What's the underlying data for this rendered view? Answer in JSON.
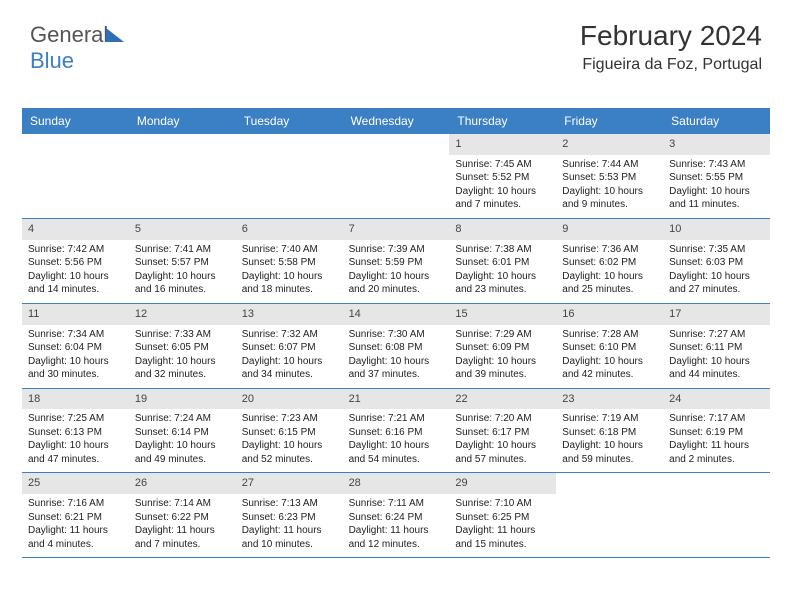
{
  "brand": {
    "part1": "General",
    "part2": "Blue"
  },
  "title": "February 2024",
  "location": "Figueira da Foz, Portugal",
  "colors": {
    "header_bg": "#3b7fc4",
    "header_text": "#ffffff",
    "daynum_bg": "#e6e6e6",
    "row_border": "#3b7fc4",
    "page_bg": "#ffffff",
    "text": "#333333"
  },
  "day_headers": [
    "Sunday",
    "Monday",
    "Tuesday",
    "Wednesday",
    "Thursday",
    "Friday",
    "Saturday"
  ],
  "weeks": [
    [
      {
        "empty": true
      },
      {
        "empty": true
      },
      {
        "empty": true
      },
      {
        "empty": true
      },
      {
        "num": "1",
        "sunrise": "Sunrise: 7:45 AM",
        "sunset": "Sunset: 5:52 PM",
        "daylight": "Daylight: 10 hours and 7 minutes."
      },
      {
        "num": "2",
        "sunrise": "Sunrise: 7:44 AM",
        "sunset": "Sunset: 5:53 PM",
        "daylight": "Daylight: 10 hours and 9 minutes."
      },
      {
        "num": "3",
        "sunrise": "Sunrise: 7:43 AM",
        "sunset": "Sunset: 5:55 PM",
        "daylight": "Daylight: 10 hours and 11 minutes."
      }
    ],
    [
      {
        "num": "4",
        "sunrise": "Sunrise: 7:42 AM",
        "sunset": "Sunset: 5:56 PM",
        "daylight": "Daylight: 10 hours and 14 minutes."
      },
      {
        "num": "5",
        "sunrise": "Sunrise: 7:41 AM",
        "sunset": "Sunset: 5:57 PM",
        "daylight": "Daylight: 10 hours and 16 minutes."
      },
      {
        "num": "6",
        "sunrise": "Sunrise: 7:40 AM",
        "sunset": "Sunset: 5:58 PM",
        "daylight": "Daylight: 10 hours and 18 minutes."
      },
      {
        "num": "7",
        "sunrise": "Sunrise: 7:39 AM",
        "sunset": "Sunset: 5:59 PM",
        "daylight": "Daylight: 10 hours and 20 minutes."
      },
      {
        "num": "8",
        "sunrise": "Sunrise: 7:38 AM",
        "sunset": "Sunset: 6:01 PM",
        "daylight": "Daylight: 10 hours and 23 minutes."
      },
      {
        "num": "9",
        "sunrise": "Sunrise: 7:36 AM",
        "sunset": "Sunset: 6:02 PM",
        "daylight": "Daylight: 10 hours and 25 minutes."
      },
      {
        "num": "10",
        "sunrise": "Sunrise: 7:35 AM",
        "sunset": "Sunset: 6:03 PM",
        "daylight": "Daylight: 10 hours and 27 minutes."
      }
    ],
    [
      {
        "num": "11",
        "sunrise": "Sunrise: 7:34 AM",
        "sunset": "Sunset: 6:04 PM",
        "daylight": "Daylight: 10 hours and 30 minutes."
      },
      {
        "num": "12",
        "sunrise": "Sunrise: 7:33 AM",
        "sunset": "Sunset: 6:05 PM",
        "daylight": "Daylight: 10 hours and 32 minutes."
      },
      {
        "num": "13",
        "sunrise": "Sunrise: 7:32 AM",
        "sunset": "Sunset: 6:07 PM",
        "daylight": "Daylight: 10 hours and 34 minutes."
      },
      {
        "num": "14",
        "sunrise": "Sunrise: 7:30 AM",
        "sunset": "Sunset: 6:08 PM",
        "daylight": "Daylight: 10 hours and 37 minutes."
      },
      {
        "num": "15",
        "sunrise": "Sunrise: 7:29 AM",
        "sunset": "Sunset: 6:09 PM",
        "daylight": "Daylight: 10 hours and 39 minutes."
      },
      {
        "num": "16",
        "sunrise": "Sunrise: 7:28 AM",
        "sunset": "Sunset: 6:10 PM",
        "daylight": "Daylight: 10 hours and 42 minutes."
      },
      {
        "num": "17",
        "sunrise": "Sunrise: 7:27 AM",
        "sunset": "Sunset: 6:11 PM",
        "daylight": "Daylight: 10 hours and 44 minutes."
      }
    ],
    [
      {
        "num": "18",
        "sunrise": "Sunrise: 7:25 AM",
        "sunset": "Sunset: 6:13 PM",
        "daylight": "Daylight: 10 hours and 47 minutes."
      },
      {
        "num": "19",
        "sunrise": "Sunrise: 7:24 AM",
        "sunset": "Sunset: 6:14 PM",
        "daylight": "Daylight: 10 hours and 49 minutes."
      },
      {
        "num": "20",
        "sunrise": "Sunrise: 7:23 AM",
        "sunset": "Sunset: 6:15 PM",
        "daylight": "Daylight: 10 hours and 52 minutes."
      },
      {
        "num": "21",
        "sunrise": "Sunrise: 7:21 AM",
        "sunset": "Sunset: 6:16 PM",
        "daylight": "Daylight: 10 hours and 54 minutes."
      },
      {
        "num": "22",
        "sunrise": "Sunrise: 7:20 AM",
        "sunset": "Sunset: 6:17 PM",
        "daylight": "Daylight: 10 hours and 57 minutes."
      },
      {
        "num": "23",
        "sunrise": "Sunrise: 7:19 AM",
        "sunset": "Sunset: 6:18 PM",
        "daylight": "Daylight: 10 hours and 59 minutes."
      },
      {
        "num": "24",
        "sunrise": "Sunrise: 7:17 AM",
        "sunset": "Sunset: 6:19 PM",
        "daylight": "Daylight: 11 hours and 2 minutes."
      }
    ],
    [
      {
        "num": "25",
        "sunrise": "Sunrise: 7:16 AM",
        "sunset": "Sunset: 6:21 PM",
        "daylight": "Daylight: 11 hours and 4 minutes."
      },
      {
        "num": "26",
        "sunrise": "Sunrise: 7:14 AM",
        "sunset": "Sunset: 6:22 PM",
        "daylight": "Daylight: 11 hours and 7 minutes."
      },
      {
        "num": "27",
        "sunrise": "Sunrise: 7:13 AM",
        "sunset": "Sunset: 6:23 PM",
        "daylight": "Daylight: 11 hours and 10 minutes."
      },
      {
        "num": "28",
        "sunrise": "Sunrise: 7:11 AM",
        "sunset": "Sunset: 6:24 PM",
        "daylight": "Daylight: 11 hours and 12 minutes."
      },
      {
        "num": "29",
        "sunrise": "Sunrise: 7:10 AM",
        "sunset": "Sunset: 6:25 PM",
        "daylight": "Daylight: 11 hours and 15 minutes."
      },
      {
        "empty": true
      },
      {
        "empty": true
      }
    ]
  ]
}
